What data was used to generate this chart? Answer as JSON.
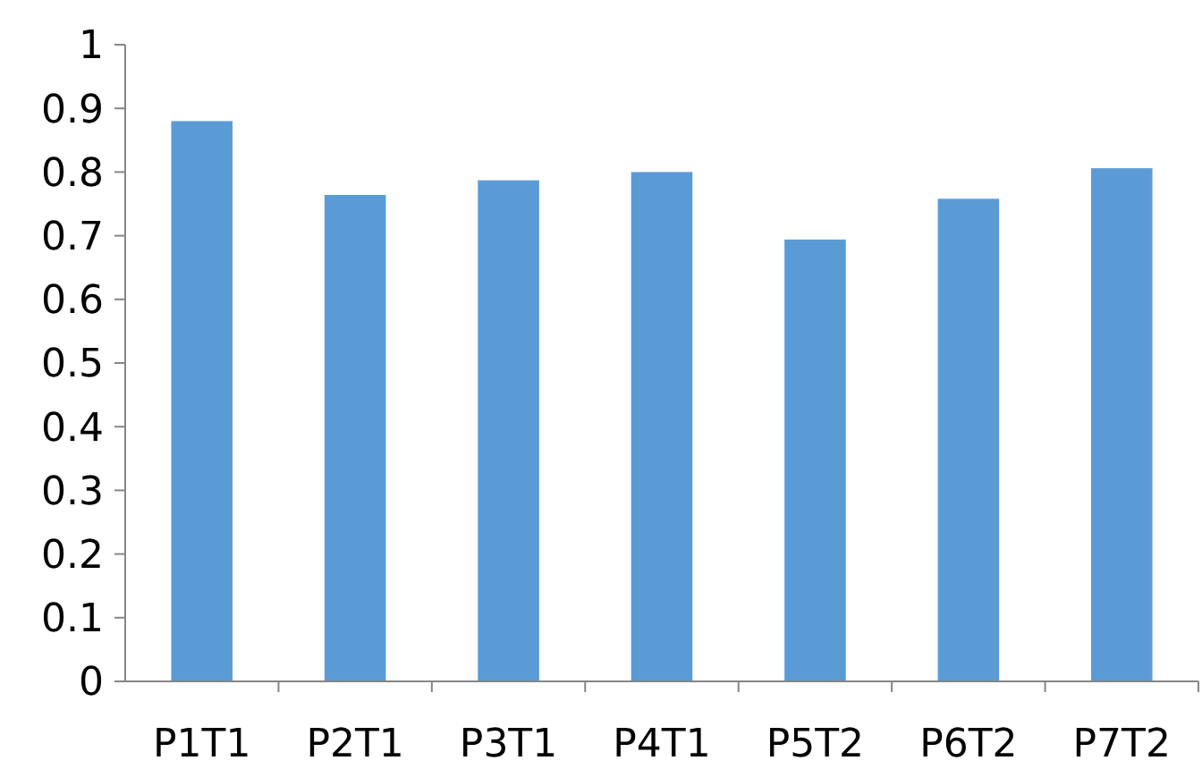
{
  "chart_data": {
    "type": "bar",
    "categories": [
      "P1T1",
      "P2T1",
      "P3T1",
      "P4T1",
      "P5T2",
      "P6T2",
      "P7T2"
    ],
    "values": [
      0.88,
      0.764,
      0.787,
      0.8,
      0.694,
      0.758,
      0.806
    ],
    "color": "#5b9bd5",
    "ylim": [
      0,
      1
    ],
    "yticks": [
      0,
      0.1,
      0.2,
      0.3,
      0.4,
      0.5,
      0.6,
      0.7,
      0.8,
      0.9,
      1
    ],
    "grid": false
  }
}
